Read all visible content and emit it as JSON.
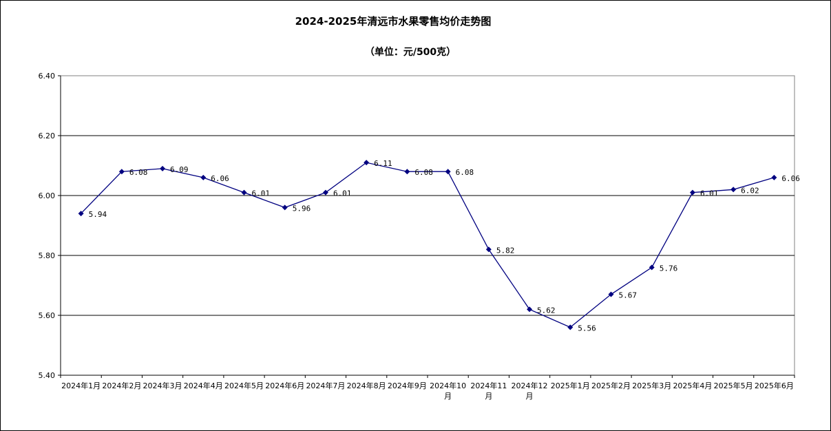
{
  "chart_data": {
    "type": "line",
    "title": "2024-2025年清远市水果零售均价走势图",
    "subtitle": "（单位：元/500克）",
    "categories": [
      "2024年1月",
      "2024年2月",
      "2024年3月",
      "2024年4月",
      "2024年5月",
      "2024年6月",
      "2024年7月",
      "2024年8月",
      "2024年9月",
      "2024年10月",
      "2024年11月",
      "2024年12月",
      "2025年1月",
      "2025年2月",
      "2025年3月",
      "2025年4月",
      "2025年5月",
      "2025年6月"
    ],
    "category_labels": [
      [
        "2024年1月"
      ],
      [
        "2024年2月"
      ],
      [
        "2024年3月"
      ],
      [
        "2024年4月"
      ],
      [
        "2024年5月"
      ],
      [
        "2024年6月"
      ],
      [
        "2024年7月"
      ],
      [
        "2024年8月"
      ],
      [
        "2024年9月"
      ],
      [
        "2024年10",
        "月"
      ],
      [
        "2024年11",
        "月"
      ],
      [
        "2024年12",
        "月"
      ],
      [
        "2025年1月"
      ],
      [
        "2025年2月"
      ],
      [
        "2025年3月"
      ],
      [
        "2025年4月"
      ],
      [
        "2025年5月"
      ],
      [
        "2025年6月"
      ]
    ],
    "series": [
      {
        "values": [
          5.94,
          6.08,
          6.09,
          6.06,
          6.01,
          5.96,
          6.01,
          6.11,
          6.08,
          6.08,
          5.82,
          5.62,
          5.56,
          5.67,
          5.76,
          6.01,
          6.02,
          6.06
        ],
        "color": "#000080"
      }
    ],
    "ylim": [
      5.4,
      6.4
    ],
    "yticks": [
      "5.40",
      "5.60",
      "5.80",
      "6.00",
      "6.20",
      "6.40"
    ],
    "grid": true,
    "legend": "none"
  }
}
